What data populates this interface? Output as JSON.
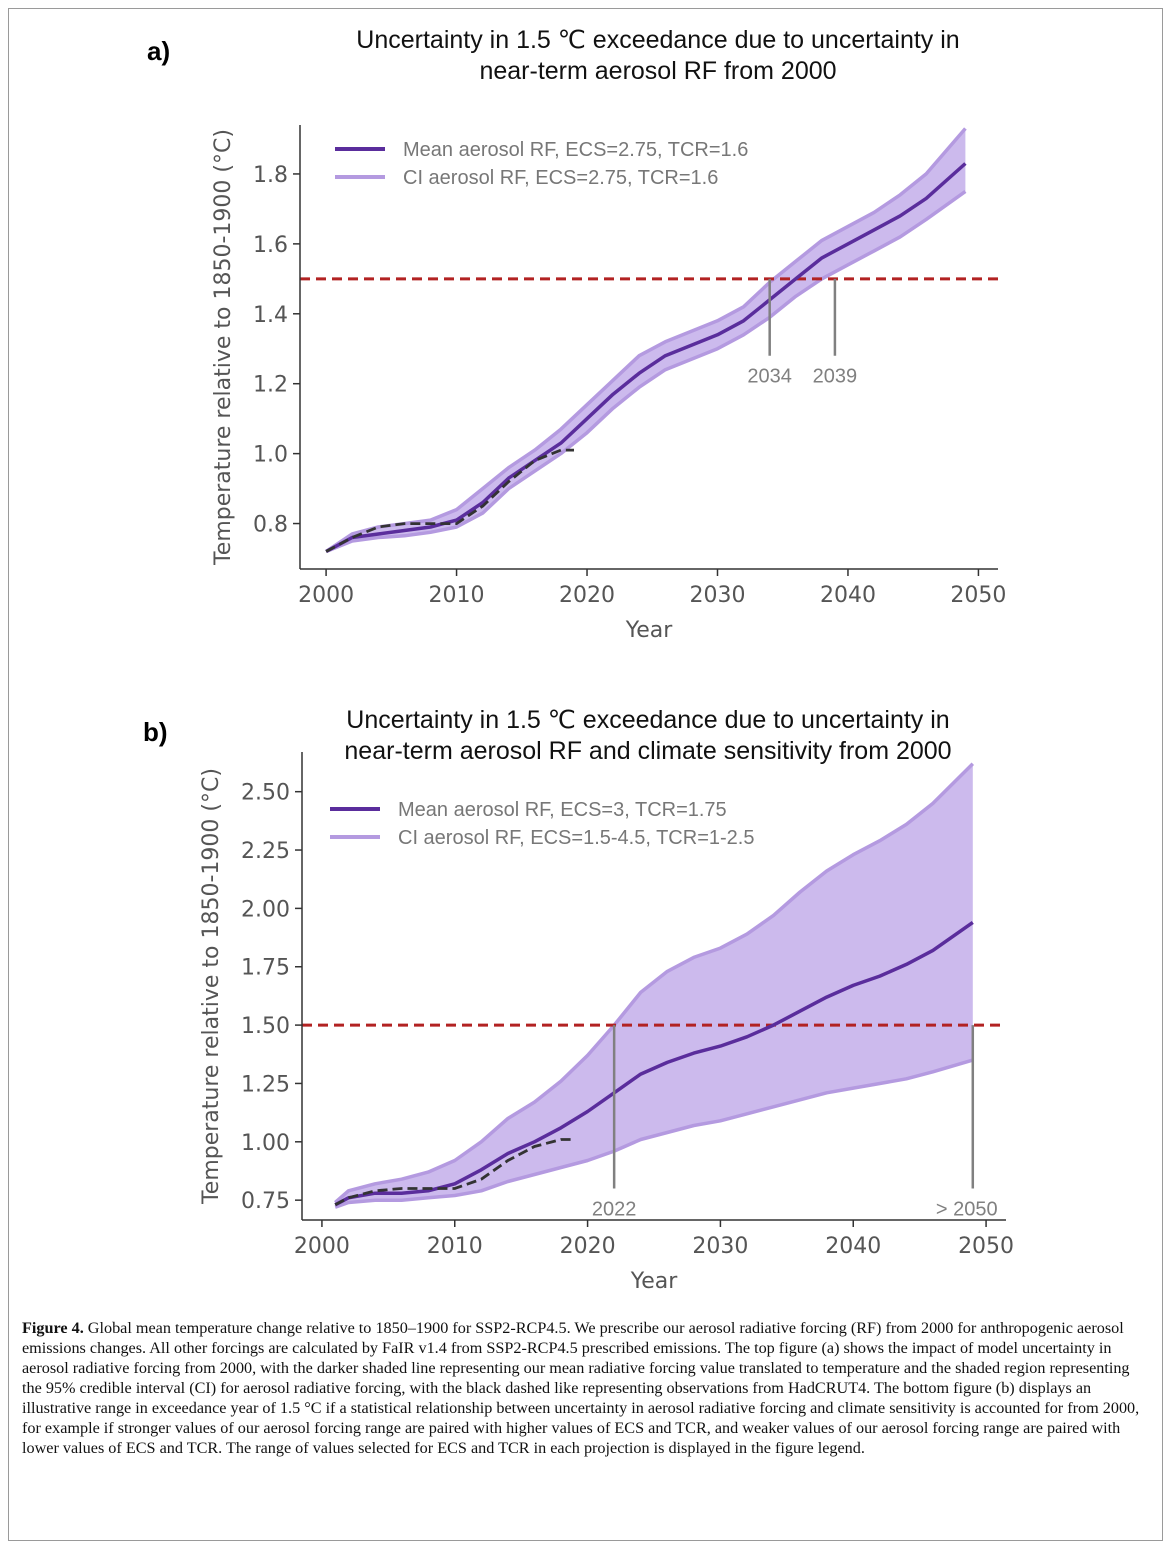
{
  "panels": [
    {
      "letter": "a)",
      "title_line1": "Uncertainty in 1.5 ℃ exceedance due to uncertainty in",
      "title_line2": "near-term aerosol RF from 2000"
    },
    {
      "letter": "b)",
      "title_line1": "Uncertainty in 1.5 ℃ exceedance due to uncertainty in",
      "title_line2": "near-term aerosol RF and climate sensitivity from 2000"
    }
  ],
  "caption": {
    "label": "Figure 4.",
    "text": " Global mean temperature change relative to 1850–1900 for SSP2-RCP4.5. We prescribe our aerosol radiative forcing (RF) from 2000 for anthropogenic aerosol emissions changes. All other forcings are calculated by FaIR v1.4 from SSP2-RCP4.5 prescribed emissions. The top figure (a) shows the impact of model uncertainty in aerosol radiative forcing from 2000, with the darker shaded line representing our mean radiative forcing value translated to temperature and the shaded region representing the 95% credible interval (CI) for aerosol radiative forcing, with the black dashed like representing observations from HadCRUT4. The bottom figure (b) displays an illustrative range in exceedance year of 1.5 °C if a statistical relationship between uncertainty in aerosol radiative forcing and climate sensitivity is accounted for from 2000, for example if stronger values of our aerosol forcing range are paired with higher values of ECS and TCR, and weaker values of our aerosol forcing range are paired with lower values of ECS and TCR. The range of values selected for ECS and TCR in each projection is displayed in the figure legend."
  },
  "colors": {
    "mean_line": "#5a2d9c",
    "ci_line": "#b49ae0",
    "ci_fill": "#c9b6ec",
    "threshold": "#b22222",
    "observations": "#333333",
    "annotation": "#808080",
    "axis_text": "#555555"
  },
  "chart_data": [
    {
      "type": "line",
      "xlabel": "Year",
      "ylabel": "Temperature relative to 1850-1900 (°C)",
      "xlim": [
        1998,
        2051.5
      ],
      "ylim": [
        0.67,
        1.94
      ],
      "xticks": [
        2000,
        2010,
        2020,
        2030,
        2040,
        2050
      ],
      "yticks": [
        0.8,
        1.0,
        1.2,
        1.4,
        1.6,
        1.8
      ],
      "ytick_labels": [
        "0.8",
        "1.0",
        "1.2",
        "1.4",
        "1.6",
        "1.8"
      ],
      "legend_position": "top-left",
      "threshold": 1.5,
      "series": [
        {
          "name": "Mean aerosol RF, ECS=2.75, TCR=1.6",
          "role": "mean",
          "x": [
            2000,
            2002,
            2004,
            2006,
            2008,
            2010,
            2012,
            2014,
            2016,
            2018,
            2020,
            2022,
            2024,
            2026,
            2028,
            2030,
            2032,
            2034,
            2036,
            2038,
            2040,
            2042,
            2044,
            2046,
            2049
          ],
          "values": [
            0.72,
            0.76,
            0.77,
            0.78,
            0.79,
            0.81,
            0.86,
            0.93,
            0.98,
            1.03,
            1.1,
            1.17,
            1.23,
            1.28,
            1.31,
            1.34,
            1.38,
            1.44,
            1.5,
            1.56,
            1.6,
            1.64,
            1.68,
            1.73,
            1.83
          ]
        },
        {
          "name": "CI aerosol RF, ECS=2.75, TCR=1.6",
          "role": "ci",
          "x": [
            2000,
            2002,
            2004,
            2006,
            2008,
            2010,
            2012,
            2014,
            2016,
            2018,
            2020,
            2022,
            2024,
            2026,
            2028,
            2030,
            2032,
            2034,
            2036,
            2038,
            2040,
            2042,
            2044,
            2046,
            2049
          ],
          "upper": [
            0.72,
            0.77,
            0.79,
            0.8,
            0.81,
            0.84,
            0.9,
            0.96,
            1.01,
            1.07,
            1.14,
            1.21,
            1.28,
            1.32,
            1.35,
            1.38,
            1.42,
            1.49,
            1.55,
            1.61,
            1.65,
            1.69,
            1.74,
            1.8,
            1.93
          ],
          "lower": [
            0.72,
            0.75,
            0.76,
            0.765,
            0.775,
            0.79,
            0.83,
            0.9,
            0.95,
            1.0,
            1.06,
            1.13,
            1.19,
            1.24,
            1.27,
            1.3,
            1.34,
            1.39,
            1.45,
            1.5,
            1.54,
            1.58,
            1.62,
            1.67,
            1.75
          ]
        },
        {
          "name": "",
          "role": "observations",
          "x": [
            2000,
            2002,
            2004,
            2006,
            2008,
            2010,
            2012,
            2014,
            2016,
            2018,
            2019
          ],
          "values": [
            0.72,
            0.76,
            0.79,
            0.8,
            0.8,
            0.8,
            0.85,
            0.92,
            0.98,
            1.01,
            1.01
          ]
        }
      ],
      "annotations": [
        {
          "text": "2034",
          "x": 2034,
          "from_y": 1.28,
          "to_y": 1.5
        },
        {
          "text": "2039",
          "x": 2039,
          "from_y": 1.28,
          "to_y": 1.5
        }
      ]
    },
    {
      "type": "line",
      "xlabel": "Year",
      "ylabel": "Temperature relative to 1850-1900 (°C)",
      "xlim": [
        1998.5,
        2051.5
      ],
      "ylim": [
        0.665,
        2.67
      ],
      "xticks": [
        2000,
        2010,
        2020,
        2030,
        2040,
        2050
      ],
      "yticks": [
        0.75,
        1.0,
        1.25,
        1.5,
        1.75,
        2.0,
        2.25,
        2.5
      ],
      "ytick_labels": [
        "0.75",
        "1.00",
        "1.25",
        "1.50",
        "1.75",
        "2.00",
        "2.25",
        "2.50"
      ],
      "legend_position": "top-left",
      "threshold": 1.5,
      "series": [
        {
          "name": "Mean aerosol RF, ECS=3, TCR=1.75",
          "role": "mean",
          "x": [
            2001,
            2002,
            2004,
            2006,
            2008,
            2010,
            2012,
            2014,
            2016,
            2018,
            2020,
            2022,
            2024,
            2026,
            2028,
            2030,
            2032,
            2034,
            2036,
            2038,
            2040,
            2042,
            2044,
            2046,
            2049
          ],
          "values": [
            0.73,
            0.76,
            0.78,
            0.78,
            0.79,
            0.82,
            0.88,
            0.95,
            1.0,
            1.06,
            1.13,
            1.21,
            1.29,
            1.34,
            1.38,
            1.41,
            1.45,
            1.5,
            1.56,
            1.62,
            1.67,
            1.71,
            1.76,
            1.82,
            1.94
          ]
        },
        {
          "name": "CI aerosol RF, ECS=1.5-4.5, TCR=1-2.5",
          "role": "ci",
          "x": [
            2001,
            2002,
            2004,
            2006,
            2008,
            2010,
            2012,
            2014,
            2016,
            2018,
            2020,
            2022,
            2024,
            2026,
            2028,
            2030,
            2032,
            2034,
            2036,
            2038,
            2040,
            2042,
            2044,
            2046,
            2049
          ],
          "upper": [
            0.74,
            0.79,
            0.82,
            0.84,
            0.87,
            0.92,
            1.0,
            1.1,
            1.17,
            1.26,
            1.37,
            1.5,
            1.64,
            1.73,
            1.79,
            1.83,
            1.89,
            1.97,
            2.07,
            2.16,
            2.23,
            2.29,
            2.36,
            2.45,
            2.62
          ],
          "lower": [
            0.72,
            0.74,
            0.75,
            0.75,
            0.76,
            0.77,
            0.79,
            0.83,
            0.86,
            0.89,
            0.92,
            0.96,
            1.01,
            1.04,
            1.07,
            1.09,
            1.12,
            1.15,
            1.18,
            1.21,
            1.23,
            1.25,
            1.27,
            1.3,
            1.35
          ]
        },
        {
          "name": "",
          "role": "observations",
          "x": [
            2001,
            2002,
            2004,
            2006,
            2008,
            2010,
            2012,
            2014,
            2016,
            2018,
            2019
          ],
          "values": [
            0.73,
            0.76,
            0.79,
            0.8,
            0.8,
            0.8,
            0.84,
            0.92,
            0.98,
            1.01,
            1.01
          ]
        }
      ],
      "annotations": [
        {
          "text": "2022",
          "x": 2022,
          "from_y": 0.8,
          "to_y": 1.5
        },
        {
          "text": "> 2050",
          "x": 2049,
          "from_y": 0.8,
          "to_y": 1.5
        }
      ]
    }
  ]
}
